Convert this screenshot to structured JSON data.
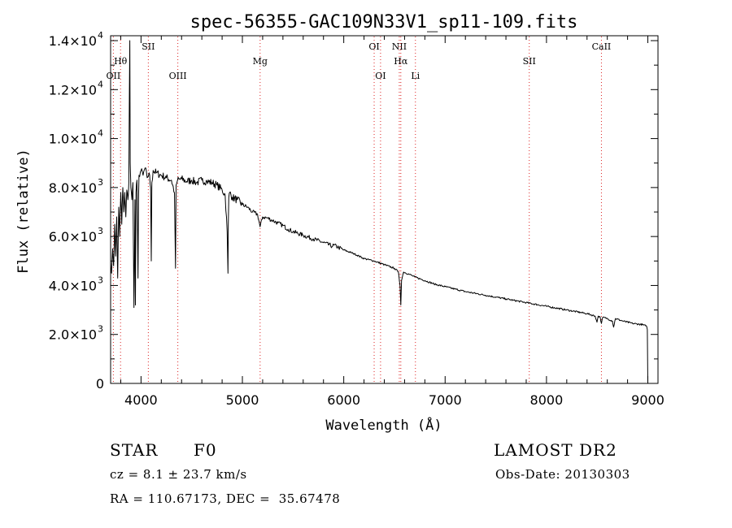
{
  "chart_data": {
    "type": "line",
    "title": "spec-56355-GAC109N33V1_sp11-109.fits",
    "xlabel": "Wavelength (Å)",
    "ylabel": "Flux (relative)",
    "xlim": [
      3700,
      9100
    ],
    "ylim": [
      0,
      14200
    ],
    "x_ticks": [
      4000,
      5000,
      6000,
      7000,
      8000,
      9000
    ],
    "y_ticks": [
      {
        "value": 0,
        "mantissa": "0",
        "exp": ""
      },
      {
        "value": 2000,
        "mantissa": "2.0×10",
        "exp": "3"
      },
      {
        "value": 4000,
        "mantissa": "4.0×10",
        "exp": "3"
      },
      {
        "value": 6000,
        "mantissa": "6.0×10",
        "exp": "3"
      },
      {
        "value": 8000,
        "mantissa": "8.0×10",
        "exp": "3"
      },
      {
        "value": 10000,
        "mantissa": "1.0×10",
        "exp": "4"
      },
      {
        "value": 12000,
        "mantissa": "1.2×10",
        "exp": "4"
      },
      {
        "value": 14000,
        "mantissa": "1.4×10",
        "exp": "4"
      }
    ],
    "series": [
      {
        "color": "#000000",
        "x": [
          3700,
          3710,
          3720,
          3730,
          3740,
          3750,
          3760,
          3770,
          3780,
          3790,
          3800,
          3810,
          3820,
          3830,
          3840,
          3850,
          3860,
          3870,
          3880,
          3885,
          3889,
          3893,
          3900,
          3910,
          3920,
          3930,
          3935,
          3940,
          3945,
          3950,
          3960,
          3965,
          3970,
          3975,
          3980,
          4000,
          4020,
          4040,
          4060,
          4080,
          4095,
          4101,
          4107,
          4120,
          4150,
          4200,
          4250,
          4300,
          4330,
          4340,
          4346,
          4360,
          4400,
          4450,
          4500,
          4550,
          4600,
          4650,
          4700,
          4750,
          4800,
          4830,
          4850,
          4858,
          4861,
          4866,
          4875,
          4900,
          4950,
          5000,
          5050,
          5100,
          5150,
          5175,
          5200,
          5250,
          5300,
          5350,
          5400,
          5450,
          5500,
          5600,
          5700,
          5800,
          5890,
          5900,
          5950,
          6000,
          6100,
          6200,
          6300,
          6400,
          6500,
          6540,
          6555,
          6563,
          6570,
          6590,
          6650,
          6700,
          6800,
          6900,
          7000,
          7200,
          7400,
          7600,
          7800,
          8000,
          8200,
          8400,
          8480,
          8498,
          8510,
          8530,
          8542,
          8555,
          8600,
          8650,
          8662,
          8680,
          8750,
          8850,
          8950,
          8980,
          8990,
          8995,
          9000
        ],
        "y": [
          5000,
          4500,
          5500,
          4800,
          6500,
          5200,
          6800,
          4300,
          7200,
          6000,
          7800,
          6500,
          8000,
          7000,
          7800,
          6800,
          7900,
          7500,
          8200,
          12000,
          14000,
          9000,
          8000,
          7500,
          8200,
          3100,
          5000,
          7500,
          3200,
          7800,
          8300,
          6500,
          4300,
          7500,
          8500,
          8700,
          8500,
          8800,
          8400,
          8600,
          8000,
          5000,
          8200,
          8700,
          8600,
          8500,
          8400,
          8300,
          7800,
          4700,
          8100,
          8300,
          8350,
          8250,
          8300,
          8200,
          8300,
          8250,
          8200,
          8100,
          7900,
          7700,
          6200,
          4500,
          6500,
          7600,
          7800,
          7600,
          7500,
          7300,
          7200,
          7000,
          6900,
          6400,
          6800,
          6750,
          6650,
          6550,
          6450,
          6300,
          6200,
          6050,
          5900,
          5750,
          5600,
          5650,
          5550,
          5450,
          5300,
          5100,
          5000,
          4850,
          4700,
          4550,
          4000,
          3200,
          4200,
          4550,
          4450,
          4350,
          4200,
          4050,
          3950,
          3750,
          3600,
          3450,
          3300,
          3150,
          3000,
          2850,
          2750,
          2500,
          2750,
          2700,
          2450,
          2700,
          2650,
          2550,
          2300,
          2650,
          2550,
          2450,
          2400,
          2350,
          2300,
          2200,
          0
        ]
      }
    ],
    "line_markers": [
      {
        "wavelength": 3727,
        "label": "OII",
        "row": 2
      },
      {
        "wavelength": 3798,
        "label": "Hθ",
        "row": 1
      },
      {
        "wavelength": 4072,
        "label": "SII",
        "row": 0
      },
      {
        "wavelength": 4363,
        "label": "OIII",
        "row": 2
      },
      {
        "wavelength": 5175,
        "label": "Mg",
        "row": 1
      },
      {
        "wavelength": 6300,
        "label": "OI",
        "row": 0
      },
      {
        "wavelength": 6363,
        "label": "OI",
        "row": 2
      },
      {
        "wavelength": 6548,
        "label": "NII",
        "row": 0
      },
      {
        "wavelength": 6563,
        "label": "Hα",
        "row": 1
      },
      {
        "wavelength": 6707,
        "label": "Li",
        "row": 2
      },
      {
        "wavelength": 7830,
        "label": "SII",
        "row": 1
      },
      {
        "wavelength": 8542,
        "label": "CaII",
        "row": 0
      }
    ],
    "marker_color": "#dd2222",
    "grid": false,
    "legend": "none"
  },
  "info": {
    "object_class": "STAR",
    "subclass": "F0",
    "survey": "LAMOST DR2",
    "velocity": "cz = 8.1 ± 23.7 km/s",
    "obs_date": "Obs-Date: 20130303",
    "coords": "RA = 110.67173, DEC =  35.67478"
  }
}
